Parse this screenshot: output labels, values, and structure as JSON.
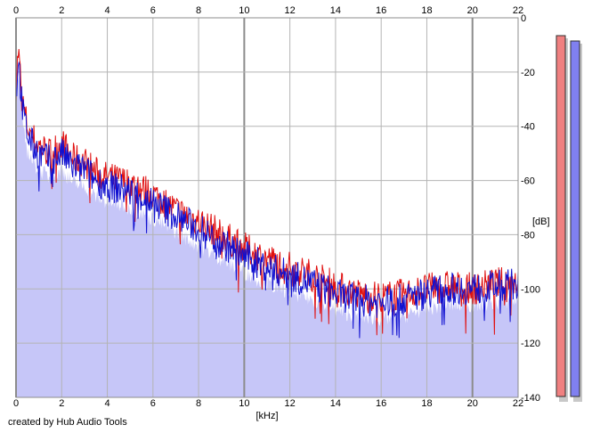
{
  "footer": {
    "credit": "created by Hub Audio Tools"
  },
  "chart_data": {
    "type": "area",
    "xlabel": "[kHz]",
    "ylabel": "[dB]",
    "xlim": [
      0,
      22
    ],
    "ylim": [
      -140,
      0
    ],
    "x_ticks": [
      0,
      2,
      4,
      6,
      8,
      10,
      12,
      14,
      16,
      18,
      20,
      22
    ],
    "y_ticks": [
      0,
      -20,
      -40,
      -60,
      -80,
      -100,
      -120,
      -140
    ],
    "grid": true,
    "grid_color": "#b4b4b4",
    "major_grid_color": "#8c8c8c",
    "fill_color": "#c6c6f8",
    "x": [
      0,
      0.1,
      0.2,
      0.3,
      0.5,
      0.8,
      1.0,
      1.5,
      2.0,
      2.5,
      3.0,
      3.5,
      4.0,
      5.0,
      6.0,
      7.0,
      8.0,
      9.0,
      10.0,
      11.0,
      12.0,
      13.0,
      14.0,
      15.0,
      16.0,
      17.0,
      18.0,
      19.0,
      20.0,
      21.0,
      22.0
    ],
    "series": [
      {
        "color": "#e01010",
        "values": [
          -25,
          -12,
          -22,
          -32,
          -40,
          -45,
          -47,
          -50,
          -46,
          -52,
          -53,
          -57,
          -59,
          -61,
          -65,
          -71,
          -75,
          -80,
          -85,
          -89,
          -92,
          -95,
          -99,
          -102,
          -103,
          -102,
          -100,
          -99,
          -100,
          -98,
          -97
        ]
      },
      {
        "color": "#1010d0",
        "values": [
          -28,
          -15,
          -25,
          -35,
          -43,
          -48,
          -50,
          -53,
          -50,
          -55,
          -56,
          -60,
          -62,
          -64,
          -68,
          -73,
          -78,
          -83,
          -88,
          -92,
          -95,
          -98,
          -102,
          -104,
          -105,
          -104,
          -101,
          -100,
          -100,
          -99,
          -98
        ]
      }
    ],
    "level_meters": [
      {
        "name": "L",
        "color": "#f08080"
      },
      {
        "name": "R",
        "color": "#8080f0"
      }
    ]
  }
}
